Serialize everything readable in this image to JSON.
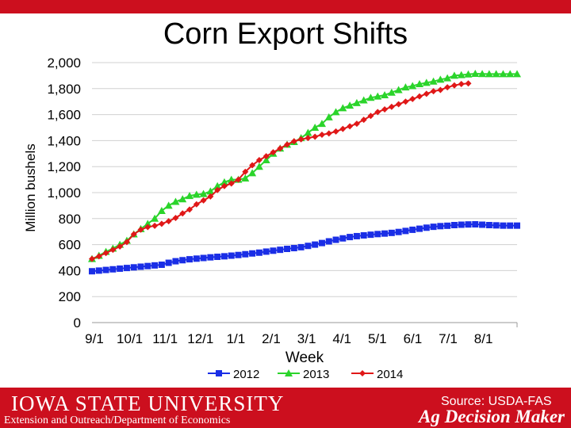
{
  "slide": {
    "title": "Corn Export Shifts",
    "source": "Source: USDA-FAS",
    "university": "Iowa State University",
    "department": "Extension and Outreach/Department of Economics",
    "brand": "Ag Decision Maker"
  },
  "colors": {
    "banner": "#cc0f1e",
    "s2012": "#1a2ee6",
    "s2013": "#2bd42b",
    "s2014": "#e01818",
    "grid": "#d0d0d0"
  },
  "chart_data": {
    "type": "line",
    "title": "",
    "xlabel": "Week",
    "ylabel": "Million bushels",
    "ylim": [
      0,
      2000
    ],
    "ytick_labels": [
      "0",
      "200",
      "400",
      "600",
      "800",
      "1,000",
      "1,200",
      "1,400",
      "1,600",
      "1,800",
      "2,000"
    ],
    "x_tick_labels": [
      "9/1",
      "10/1",
      "11/1",
      "12/1",
      "1/1",
      "2/1",
      "3/1",
      "4/1",
      "5/1",
      "6/1",
      "7/1",
      "8/1"
    ],
    "grid": true,
    "legend_position": "bottom",
    "series": [
      {
        "name": "2012",
        "marker": "square",
        "values": [
          395,
          400,
          405,
          410,
          415,
          420,
          425,
          430,
          435,
          440,
          445,
          460,
          472,
          480,
          487,
          492,
          497,
          502,
          506,
          510,
          515,
          520,
          526,
          532,
          538,
          546,
          553,
          560,
          567,
          573,
          580,
          590,
          600,
          612,
          625,
          637,
          648,
          658,
          665,
          671,
          676,
          681,
          685,
          690,
          697,
          705,
          714,
          722,
          730,
          737,
          742,
          745,
          750,
          753,
          755,
          756,
          753,
          750,
          748,
          746,
          746,
          746
        ]
      },
      {
        "name": "2013",
        "values": [
          490,
          515,
          545,
          570,
          600,
          630,
          680,
          720,
          760,
          800,
          860,
          900,
          930,
          950,
          975,
          985,
          990,
          1010,
          1050,
          1080,
          1100,
          1100,
          1110,
          1150,
          1200,
          1250,
          1300,
          1340,
          1370,
          1390,
          1420,
          1460,
          1500,
          1530,
          1580,
          1620,
          1650,
          1670,
          1690,
          1710,
          1730,
          1740,
          1750,
          1770,
          1790,
          1810,
          1820,
          1835,
          1845,
          1855,
          1870,
          1880,
          1900,
          1905,
          1910,
          1915,
          1913,
          1912,
          1912,
          1912,
          1912,
          1912
        ],
        "marker": "triangle"
      },
      {
        "name": "2014",
        "marker": "diamond",
        "values": [
          490,
          510,
          535,
          560,
          585,
          620,
          680,
          715,
          735,
          745,
          760,
          780,
          805,
          840,
          870,
          910,
          940,
          970,
          1020,
          1050,
          1070,
          1100,
          1160,
          1210,
          1250,
          1280,
          1310,
          1340,
          1370,
          1395,
          1410,
          1420,
          1430,
          1445,
          1455,
          1470,
          1490,
          1510,
          1530,
          1560,
          1590,
          1620,
          1640,
          1660,
          1680,
          1700,
          1720,
          1740,
          1760,
          1780,
          1790,
          1810,
          1825,
          1835,
          1840,
          null,
          null,
          null,
          null,
          null,
          null,
          null
        ]
      }
    ]
  }
}
